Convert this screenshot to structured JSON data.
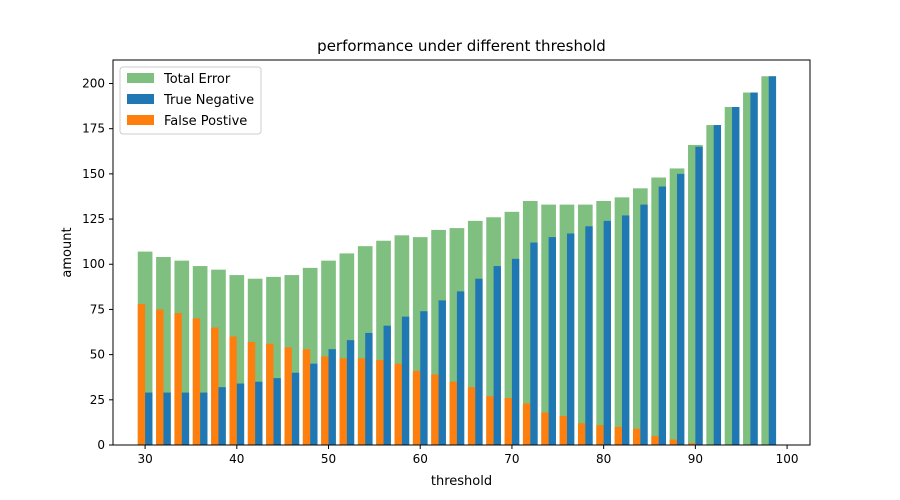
{
  "chart_data": {
    "type": "bar",
    "title": "performance under different threshold",
    "xlabel": "threshold",
    "ylabel": "amount",
    "xlim": [
      26.5,
      102.5
    ],
    "ylim": [
      0,
      213
    ],
    "xticks": [
      30,
      40,
      50,
      60,
      70,
      80,
      90,
      100
    ],
    "yticks": [
      0,
      25,
      50,
      75,
      100,
      125,
      150,
      175,
      200
    ],
    "grid": false,
    "legend_position": "top-left",
    "x": [
      30,
      32,
      34,
      36,
      38,
      40,
      42,
      44,
      46,
      48,
      50,
      52,
      54,
      56,
      58,
      60,
      62,
      64,
      66,
      68,
      70,
      72,
      74,
      76,
      78,
      80,
      82,
      84,
      86,
      88,
      90,
      92,
      94,
      96,
      98
    ],
    "series": [
      {
        "name": "Total Error",
        "color": "#7fbf7f",
        "values": [
          107,
          104,
          102,
          99,
          97,
          94,
          92,
          93,
          94,
          98,
          102,
          106,
          110,
          113,
          116,
          115,
          119,
          120,
          124,
          126,
          129,
          135,
          133,
          133,
          133,
          135,
          137,
          142,
          148,
          153,
          166,
          177,
          187,
          195,
          204
        ]
      },
      {
        "name": "True Negative",
        "color": "#1f77b4",
        "values": [
          29,
          29,
          29,
          29,
          32,
          34,
          35,
          37,
          40,
          45,
          53,
          58,
          62,
          66,
          71,
          74,
          80,
          85,
          92,
          99,
          103,
          112,
          115,
          117,
          121,
          124,
          127,
          133,
          143,
          150,
          165,
          177,
          187,
          195,
          204
        ]
      },
      {
        "name": "False Postive",
        "color": "#ff7f0e",
        "values": [
          78,
          75,
          73,
          70,
          65,
          60,
          57,
          56,
          54,
          53,
          49,
          48,
          48,
          47,
          45,
          41,
          39,
          35,
          32,
          27,
          26,
          23,
          18,
          16,
          12,
          11,
          10,
          9,
          5,
          3,
          1,
          0,
          0,
          0,
          0
        ]
      }
    ]
  }
}
